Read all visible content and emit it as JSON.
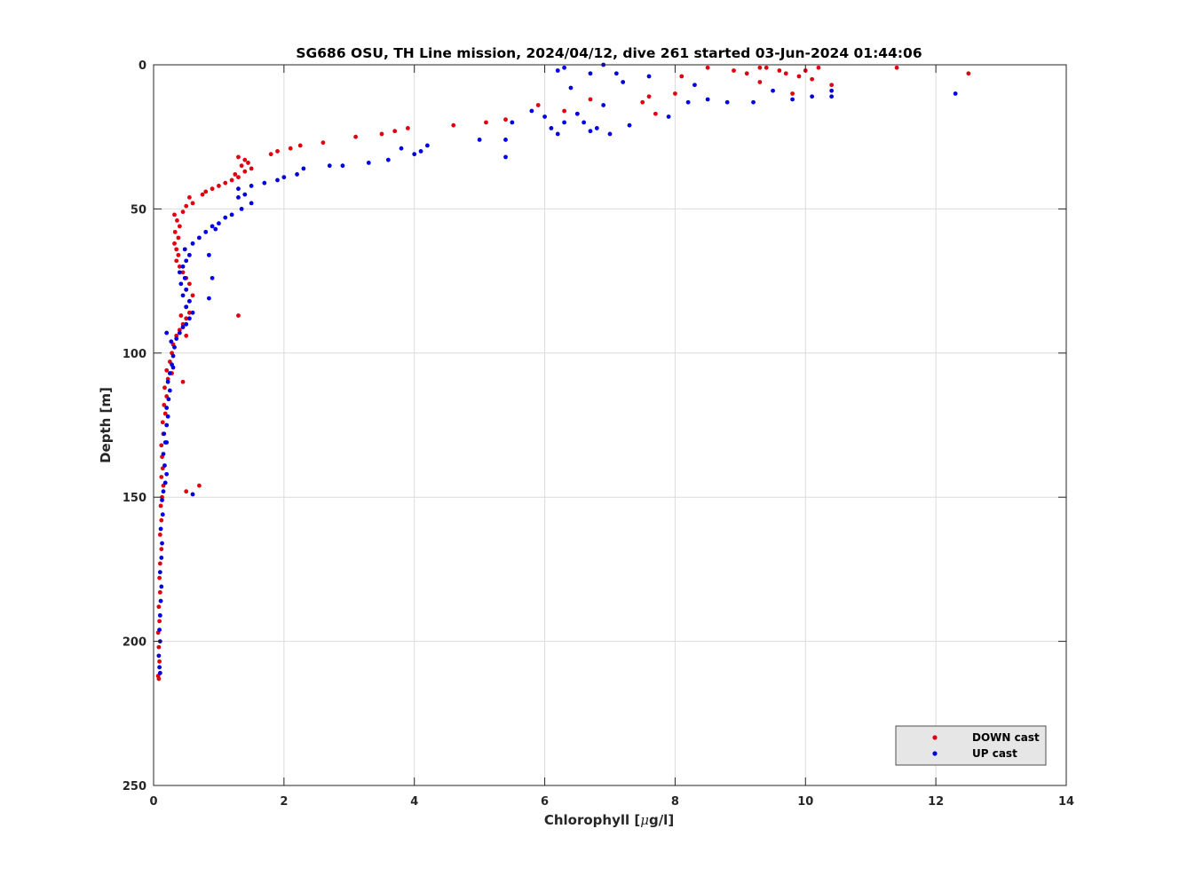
{
  "chart_data": {
    "type": "scatter",
    "title": "SG686 OSU, TH Line mission, 2024/04/12, dive 261 started 03-Jun-2024 01:44:06",
    "xlabel_prefix": "Chlorophyll [",
    "xlabel_mu": "μ",
    "xlabel_suffix": "g/l]",
    "ylabel": "Depth [m]",
    "xlim": [
      0,
      14
    ],
    "ylim": [
      0,
      250
    ],
    "y_reversed": true,
    "xticks": [
      0,
      2,
      4,
      6,
      8,
      10,
      12,
      14
    ],
    "yticks": [
      0,
      50,
      100,
      150,
      200,
      250
    ],
    "grid": true,
    "legend_position": "bottom-right",
    "series": [
      {
        "name": "DOWN cast",
        "color": "#e0000f",
        "points": [
          [
            0.08,
            213
          ],
          [
            0.07,
            212
          ],
          [
            0.09,
            207
          ],
          [
            0.08,
            202
          ],
          [
            0.07,
            197
          ],
          [
            0.09,
            193
          ],
          [
            0.08,
            188
          ],
          [
            0.1,
            183
          ],
          [
            0.09,
            178
          ],
          [
            0.1,
            173
          ],
          [
            0.12,
            168
          ],
          [
            0.1,
            163
          ],
          [
            0.12,
            158
          ],
          [
            0.11,
            153
          ],
          [
            0.13,
            150
          ],
          [
            0.15,
            146
          ],
          [
            0.12,
            143
          ],
          [
            0.14,
            140
          ],
          [
            0.13,
            136
          ],
          [
            0.12,
            132
          ],
          [
            0.15,
            128
          ],
          [
            0.14,
            124
          ],
          [
            0.18,
            121
          ],
          [
            0.16,
            118
          ],
          [
            0.2,
            115
          ],
          [
            0.17,
            112
          ],
          [
            0.22,
            109
          ],
          [
            0.2,
            106
          ],
          [
            0.25,
            103
          ],
          [
            0.28,
            100
          ],
          [
            0.3,
            97
          ],
          [
            0.35,
            94
          ],
          [
            0.4,
            92
          ],
          [
            0.45,
            90
          ],
          [
            0.5,
            88
          ],
          [
            0.55,
            86
          ],
          [
            0.5,
            84
          ],
          [
            0.55,
            82
          ],
          [
            0.6,
            80
          ],
          [
            0.5,
            78
          ],
          [
            0.55,
            76
          ],
          [
            0.5,
            74
          ],
          [
            0.45,
            72
          ],
          [
            0.4,
            70
          ],
          [
            0.35,
            68
          ],
          [
            0.38,
            66
          ],
          [
            0.35,
            64
          ],
          [
            0.32,
            62
          ],
          [
            0.38,
            60
          ],
          [
            0.33,
            58
          ],
          [
            0.4,
            56
          ],
          [
            0.36,
            54
          ],
          [
            0.32,
            52
          ],
          [
            0.45,
            51
          ],
          [
            0.5,
            49
          ],
          [
            0.6,
            48
          ],
          [
            0.55,
            46
          ],
          [
            0.75,
            45
          ],
          [
            0.8,
            44
          ],
          [
            0.9,
            43
          ],
          [
            1.0,
            42
          ],
          [
            1.1,
            41
          ],
          [
            1.2,
            40
          ],
          [
            1.3,
            39
          ],
          [
            1.25,
            38
          ],
          [
            1.4,
            37
          ],
          [
            1.5,
            36
          ],
          [
            1.35,
            35
          ],
          [
            1.45,
            34
          ],
          [
            1.4,
            33
          ],
          [
            1.3,
            32
          ],
          [
            1.8,
            31
          ],
          [
            1.9,
            30
          ],
          [
            2.1,
            29
          ],
          [
            2.25,
            28
          ],
          [
            2.6,
            27
          ],
          [
            3.1,
            25
          ],
          [
            3.5,
            24
          ],
          [
            3.7,
            23
          ],
          [
            3.9,
            22
          ],
          [
            4.6,
            21
          ],
          [
            5.1,
            20
          ],
          [
            5.4,
            19
          ],
          [
            5.9,
            14
          ],
          [
            6.3,
            16
          ],
          [
            6.5,
            17
          ],
          [
            6.7,
            12
          ],
          [
            7.5,
            13
          ],
          [
            7.6,
            11
          ],
          [
            7.7,
            17
          ],
          [
            8.0,
            10
          ],
          [
            8.1,
            4
          ],
          [
            8.5,
            1
          ],
          [
            8.9,
            2
          ],
          [
            9.1,
            3
          ],
          [
            9.3,
            6
          ],
          [
            9.3,
            1
          ],
          [
            9.4,
            1
          ],
          [
            9.6,
            2
          ],
          [
            9.7,
            3
          ],
          [
            9.8,
            10
          ],
          [
            9.9,
            4
          ],
          [
            10.0,
            2
          ],
          [
            10.1,
            5
          ],
          [
            10.2,
            1
          ],
          [
            10.4,
            7
          ],
          [
            11.4,
            1
          ],
          [
            12.5,
            3
          ],
          [
            1.3,
            87
          ],
          [
            0.45,
            110
          ],
          [
            0.7,
            146
          ],
          [
            0.5,
            148
          ],
          [
            0.28,
            107
          ],
          [
            0.5,
            94
          ],
          [
            0.42,
            87
          ]
        ]
      },
      {
        "name": "UP cast",
        "color": "#0000e0",
        "points": [
          [
            0.1,
            211
          ],
          [
            0.09,
            209
          ],
          [
            0.08,
            205
          ],
          [
            0.1,
            200
          ],
          [
            0.09,
            196
          ],
          [
            0.1,
            191
          ],
          [
            0.11,
            186
          ],
          [
            0.12,
            181
          ],
          [
            0.1,
            176
          ],
          [
            0.12,
            171
          ],
          [
            0.13,
            166
          ],
          [
            0.11,
            161
          ],
          [
            0.14,
            156
          ],
          [
            0.13,
            151
          ],
          [
            0.15,
            148
          ],
          [
            0.18,
            145
          ],
          [
            0.2,
            142
          ],
          [
            0.17,
            139
          ],
          [
            0.15,
            135
          ],
          [
            0.18,
            131
          ],
          [
            0.16,
            128
          ],
          [
            0.2,
            125
          ],
          [
            0.22,
            122
          ],
          [
            0.2,
            119
          ],
          [
            0.23,
            116
          ],
          [
            0.25,
            113
          ],
          [
            0.22,
            110
          ],
          [
            0.25,
            107
          ],
          [
            0.28,
            104
          ],
          [
            0.3,
            101
          ],
          [
            0.32,
            98
          ],
          [
            0.27,
            96
          ],
          [
            0.35,
            95
          ],
          [
            0.4,
            93
          ],
          [
            0.45,
            91
          ],
          [
            0.5,
            90
          ],
          [
            0.55,
            88
          ],
          [
            0.6,
            86
          ],
          [
            0.5,
            84
          ],
          [
            0.55,
            82
          ],
          [
            0.45,
            80
          ],
          [
            0.5,
            78
          ],
          [
            0.42,
            76
          ],
          [
            0.48,
            74
          ],
          [
            0.4,
            72
          ],
          [
            0.45,
            70
          ],
          [
            0.5,
            68
          ],
          [
            0.55,
            66
          ],
          [
            0.48,
            64
          ],
          [
            0.6,
            62
          ],
          [
            0.7,
            60
          ],
          [
            0.8,
            58
          ],
          [
            0.9,
            56
          ],
          [
            1.0,
            55
          ],
          [
            1.1,
            53
          ],
          [
            1.2,
            52
          ],
          [
            1.35,
            50
          ],
          [
            1.5,
            48
          ],
          [
            1.3,
            46
          ],
          [
            1.4,
            45
          ],
          [
            1.3,
            43
          ],
          [
            1.5,
            42
          ],
          [
            1.7,
            41
          ],
          [
            1.9,
            40
          ],
          [
            2.0,
            39
          ],
          [
            2.2,
            38
          ],
          [
            2.3,
            36
          ],
          [
            2.7,
            35
          ],
          [
            2.9,
            35
          ],
          [
            3.3,
            34
          ],
          [
            3.6,
            33
          ],
          [
            4.1,
            30
          ],
          [
            4.2,
            28
          ],
          [
            4.0,
            31
          ],
          [
            3.8,
            29
          ],
          [
            5.0,
            26
          ],
          [
            5.4,
            26
          ],
          [
            5.4,
            32
          ],
          [
            5.5,
            20
          ],
          [
            5.8,
            16
          ],
          [
            6.0,
            18
          ],
          [
            6.1,
            22
          ],
          [
            6.2,
            24
          ],
          [
            6.3,
            20
          ],
          [
            6.4,
            8
          ],
          [
            6.5,
            17
          ],
          [
            6.6,
            20
          ],
          [
            6.7,
            23
          ],
          [
            6.8,
            22
          ],
          [
            6.9,
            14
          ],
          [
            7.0,
            24
          ],
          [
            7.2,
            6
          ],
          [
            7.3,
            21
          ],
          [
            7.6,
            4
          ],
          [
            7.9,
            18
          ],
          [
            8.2,
            13
          ],
          [
            8.3,
            7
          ],
          [
            8.5,
            12
          ],
          [
            8.8,
            13
          ],
          [
            9.2,
            13
          ],
          [
            9.5,
            9
          ],
          [
            9.8,
            12
          ],
          [
            10.1,
            11
          ],
          [
            10.4,
            9
          ],
          [
            10.4,
            11
          ],
          [
            12.3,
            10
          ],
          [
            6.2,
            2
          ],
          [
            6.3,
            1
          ],
          [
            6.7,
            3
          ],
          [
            6.9,
            0
          ],
          [
            7.1,
            3
          ],
          [
            0.6,
            149
          ],
          [
            0.85,
            81
          ],
          [
            0.9,
            74
          ],
          [
            0.85,
            66
          ],
          [
            0.95,
            57
          ],
          [
            0.2,
            93
          ],
          [
            0.3,
            105
          ],
          [
            0.2,
            131
          ]
        ]
      }
    ]
  }
}
